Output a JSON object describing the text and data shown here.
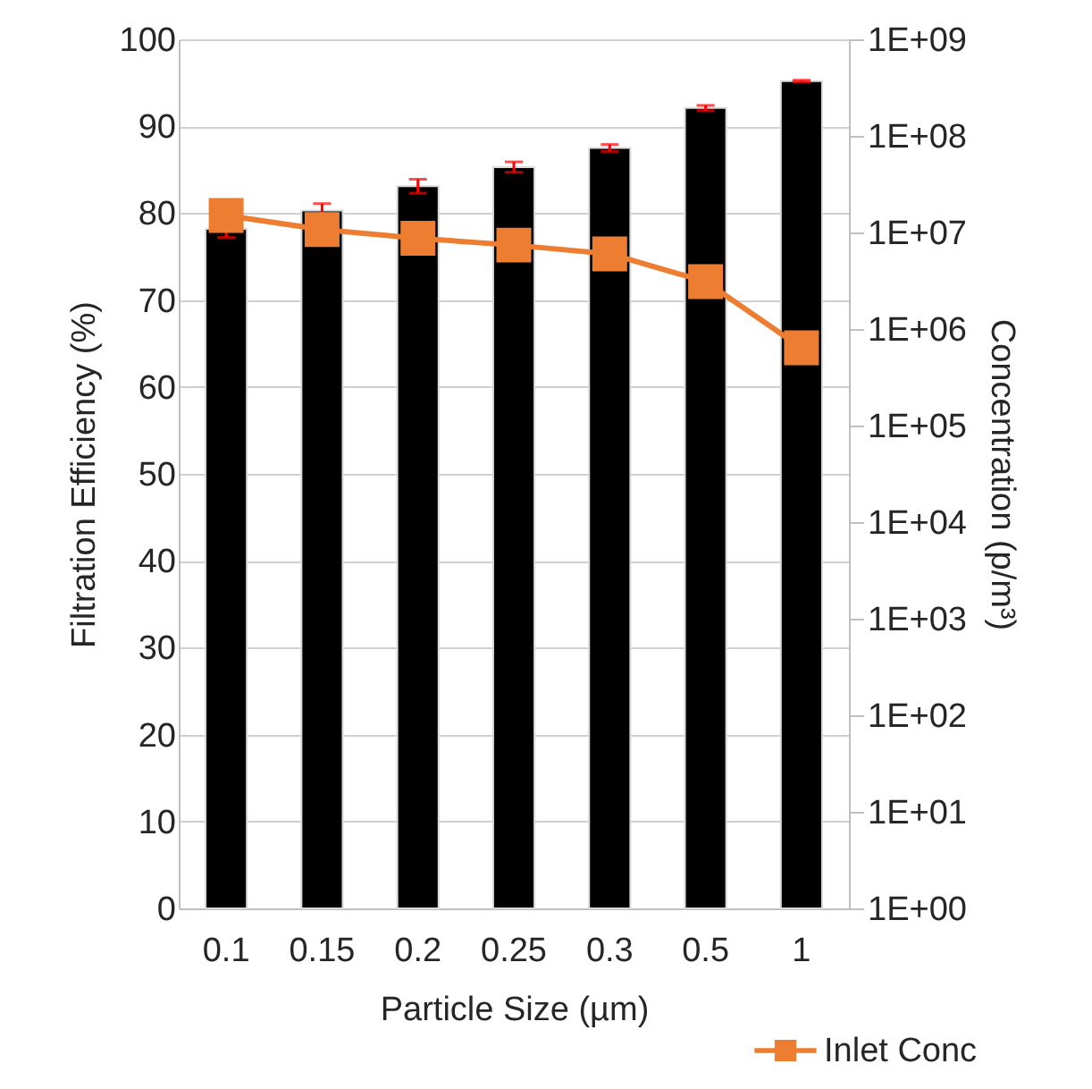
{
  "chart_data": {
    "type": "bar",
    "xlabel": "Particle Size (µm)",
    "ylabel": "Filtration Efficiency (%)",
    "y2label": "Concentration (p/m³)",
    "categories": [
      "0.1",
      "0.15",
      "0.2",
      "0.25",
      "0.3",
      "0.5",
      "1"
    ],
    "series": [
      {
        "color": "#000000",
        "values": [
          78.2,
          80.3,
          83.1,
          85.3,
          87.5,
          92.1,
          95.2
        ],
        "errors": [
          1.0,
          0.8,
          0.8,
          0.6,
          0.4,
          0.3,
          0.1
        ]
      },
      {
        "type": "line",
        "name": "Inlet Conc",
        "color": "#ed7d31",
        "axis": "y2",
        "marker": "square",
        "values": [
          15000000,
          10700000,
          8700000,
          7400000,
          6000000,
          3100000,
          640000
        ]
      }
    ],
    "ylim": [
      0,
      100
    ],
    "yticks": [
      0,
      10,
      20,
      30,
      40,
      50,
      60,
      70,
      80,
      90,
      100
    ],
    "y2lim": [
      1,
      1000000000
    ],
    "y2ticks": [
      {
        "value": 1,
        "label": "1E+00"
      },
      {
        "value": 10,
        "label": "1E+01"
      },
      {
        "value": 100,
        "label": "1E+02"
      },
      {
        "value": 1000,
        "label": "1E+03"
      },
      {
        "value": 10000,
        "label": "1E+04"
      },
      {
        "value": 100000,
        "label": "1E+05"
      },
      {
        "value": 1000000,
        "label": "1E+06"
      },
      {
        "value": 10000000,
        "label": "1E+07"
      },
      {
        "value": 100000000,
        "label": "1E+08"
      },
      {
        "value": 1000000000,
        "label": "1E+09"
      }
    ],
    "log": "y2",
    "grid": "y",
    "legend": "bottom right"
  }
}
